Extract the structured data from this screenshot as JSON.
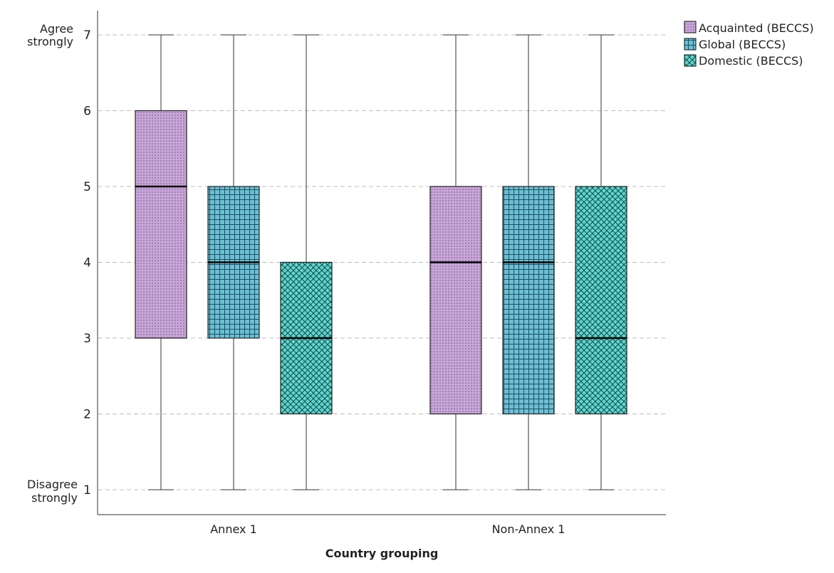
{
  "chart_data": {
    "type": "boxplot",
    "title": "",
    "xlabel": "Country grouping",
    "ylabel": "",
    "ylim": [
      0.6,
      7.4
    ],
    "y_ticks": [
      1,
      2,
      3,
      4,
      5,
      6,
      7
    ],
    "y_end_labels": {
      "top": [
        "Agree",
        "strongly"
      ],
      "bottom": [
        "Disagree",
        "strongly"
      ]
    },
    "grid": "horizontal-dashed",
    "legend_position": "top-right",
    "categories": [
      "Annex 1",
      "Non-Annex 1"
    ],
    "series": [
      {
        "name": "Acquainted (BECCS)",
        "color": "#c9a6d9",
        "pattern": "dots",
        "values": [
          {
            "min": 1,
            "q1": 3,
            "median": 5,
            "q3": 6,
            "max": 7
          },
          {
            "min": 1,
            "q1": 2,
            "median": 4,
            "q3": 5,
            "max": 7
          }
        ]
      },
      {
        "name": "Global (BECCS)",
        "color": "#6cbfd3",
        "pattern": "grid",
        "values": [
          {
            "min": 1,
            "q1": 3,
            "median": 4,
            "q3": 5,
            "max": 7
          },
          {
            "min": 1,
            "q1": 2,
            "median": 4,
            "q3": 5,
            "max": 7
          }
        ]
      },
      {
        "name": "Domestic (BECCS)",
        "color": "#5fd6cf",
        "pattern": "crosshatch",
        "values": [
          {
            "min": 1,
            "q1": 2,
            "median": 3,
            "q3": 4,
            "max": 7
          },
          {
            "min": 1,
            "q1": 2,
            "median": 3,
            "q3": 5,
            "max": 7
          }
        ]
      }
    ]
  }
}
